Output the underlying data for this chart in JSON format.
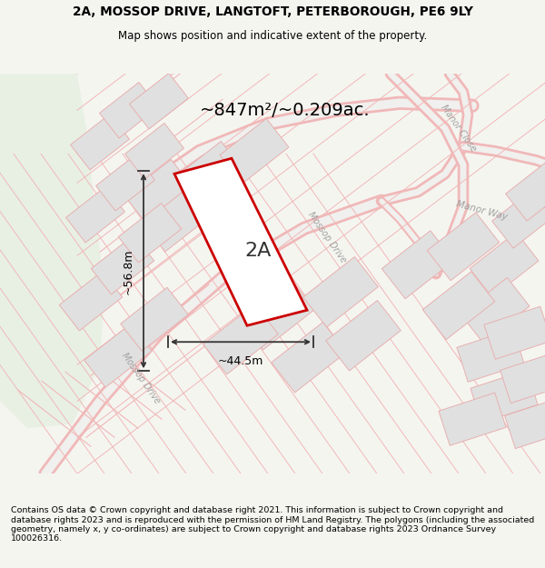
{
  "title_line1": "2A, MOSSOP DRIVE, LANGTOFT, PETERBOROUGH, PE6 9LY",
  "title_line2": "Map shows position and indicative extent of the property.",
  "area_text": "~847m²/~0.209ac.",
  "label_2A": "2A",
  "dim_width": "~44.5m",
  "dim_height": "~56.8m",
  "road_label_mossop1": "Mossop Drive",
  "road_label_mossop2": "Mossop Drive",
  "road_label_manor_close": "Manor Close",
  "road_label_manor_way": "Manor Way",
  "footer_text": "Contains OS data © Crown copyright and database right 2021. This information is subject to Crown copyright and database rights 2023 and is reproduced with the permission of HM Land Registry. The polygons (including the associated geometry, namely x, y co-ordinates) are subject to Crown copyright and database rights 2023 Ordnance Survey 100026316.",
  "bg_color": "#f5f5f0",
  "map_bg": "#f8f8f5",
  "plot_fill": "#ffffff",
  "plot_stroke": "#cc0000",
  "road_line_color": "#f0b8b8",
  "road_fill_color": "#f8f8f8",
  "road_center_color": "#e8e8e8",
  "building_fill": "#e0e0e0",
  "building_stroke": "#e8b0b0",
  "green_fill": "#e8f0e4",
  "dim_color": "#222222",
  "text_color": "#000000",
  "road_label_color": "#a0a0a0"
}
